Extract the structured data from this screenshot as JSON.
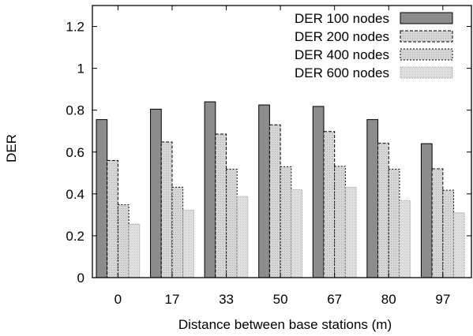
{
  "chart_data": {
    "type": "bar",
    "title": "",
    "xlabel": "Distance between base stations (m)",
    "ylabel": "DER",
    "ylim": [
      0,
      1.3
    ],
    "yticks": [
      "0",
      "0.2",
      "0.4",
      "0.6",
      "0.8",
      "1",
      "1.2"
    ],
    "categories": [
      "0",
      "17",
      "33",
      "50",
      "67",
      "80",
      "97"
    ],
    "legend_position": "top-right",
    "grid": false,
    "series": [
      {
        "name": "DER 100 nodes",
        "values": [
          0.755,
          0.805,
          0.84,
          0.825,
          0.818,
          0.755,
          0.64
        ],
        "color": "#8c8c8c",
        "pattern": "solid"
      },
      {
        "name": "DER 200 nodes",
        "values": [
          0.56,
          0.648,
          0.686,
          0.73,
          0.698,
          0.642,
          0.52
        ],
        "color": "#c8c8c8",
        "pattern": "dashed"
      },
      {
        "name": "DER 400 nodes",
        "values": [
          0.348,
          0.432,
          0.518,
          0.53,
          0.532,
          0.518,
          0.418
        ],
        "color": "#d4d4d4",
        "pattern": "dotted"
      },
      {
        "name": "DER 600 nodes",
        "values": [
          0.256,
          0.322,
          0.388,
          0.42,
          0.432,
          0.368,
          0.31
        ],
        "color": "#e2e2e2",
        "pattern": "fine"
      }
    ]
  }
}
